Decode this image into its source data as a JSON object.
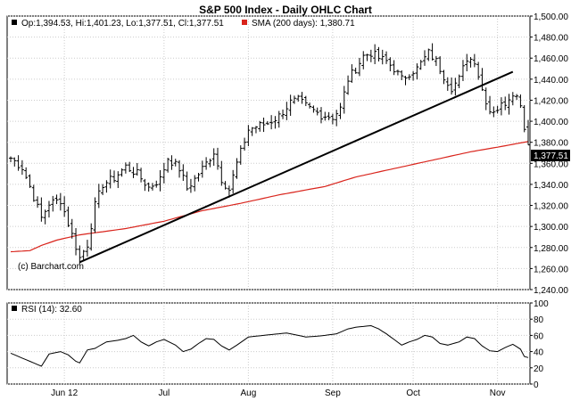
{
  "chart_data": {
    "type": "ohlc",
    "title": "S&P 500 Index - Daily OHLC Chart",
    "watermark": "(c) Barchart.com",
    "legend": {
      "ohlc": "Op:1,394.53, Hi:1,401.23, Lo:1,377.51, Cl:1,377.51",
      "sma": "SMA (200 days): 1,380.71",
      "rsi": "RSI (14): 32.60"
    },
    "last_price_label": "1,377.51",
    "last_price": 1377.51,
    "price_axis": {
      "ylim": [
        1240,
        1500
      ],
      "ticks": [
        1240,
        1260,
        1280,
        1300,
        1320,
        1340,
        1360,
        1380,
        1400,
        1420,
        1440,
        1460,
        1480,
        1500
      ],
      "tick_labels": [
        "1,240.00",
        "1,260.00",
        "1,280.00",
        "1,300.00",
        "1,320.00",
        "1,340.00",
        "1,360.00",
        "1,380.00",
        "1,400.00",
        "1,420.00",
        "1,440.00",
        "1,460.00",
        "1,480.00",
        "1,500.00"
      ]
    },
    "rsi_axis": {
      "ylim": [
        0,
        100
      ],
      "ticks": [
        0,
        20,
        40,
        60,
        80,
        100
      ],
      "tick_labels": [
        "0",
        "20",
        "40",
        "60",
        "80",
        "100"
      ]
    },
    "x_axis": {
      "labels": [
        "Jun 12",
        "Jul",
        "Aug",
        "Sep",
        "Oct",
        "Nov"
      ],
      "label_bar_index": [
        14,
        40,
        62,
        84,
        105,
        127
      ]
    },
    "trendline": {
      "from": {
        "bar": 18,
        "value": 1266
      },
      "to": {
        "bar": 131,
        "value": 1447
      }
    },
    "colors": {
      "ohlc": "#000000",
      "sma": "#d9241c",
      "rsi": "#000000",
      "trendline": "#000000",
      "grid": "#cccccc"
    },
    "bar_count": 136,
    "ohlc_anchors": [
      [
        0,
        1365
      ],
      [
        3,
        1356
      ],
      [
        5,
        1338
      ],
      [
        8,
        1308
      ],
      [
        10,
        1322
      ],
      [
        13,
        1325
      ],
      [
        16,
        1292
      ],
      [
        18,
        1270
      ],
      [
        20,
        1283
      ],
      [
        22,
        1320
      ],
      [
        24,
        1340
      ],
      [
        27,
        1346
      ],
      [
        30,
        1357
      ],
      [
        33,
        1350
      ],
      [
        36,
        1337
      ],
      [
        39,
        1345
      ],
      [
        41,
        1365
      ],
      [
        44,
        1355
      ],
      [
        46,
        1336
      ],
      [
        48,
        1345
      ],
      [
        51,
        1360
      ],
      [
        53,
        1371
      ],
      [
        55,
        1345
      ],
      [
        57,
        1335
      ],
      [
        59,
        1360
      ],
      [
        62,
        1392
      ],
      [
        64,
        1395
      ],
      [
        67,
        1398
      ],
      [
        70,
        1405
      ],
      [
        73,
        1418
      ],
      [
        75,
        1420
      ],
      [
        78,
        1412
      ],
      [
        81,
        1406
      ],
      [
        84,
        1404
      ],
      [
        86,
        1412
      ],
      [
        88,
        1440
      ],
      [
        90,
        1450
      ],
      [
        92,
        1462
      ],
      [
        94,
        1465
      ],
      [
        96,
        1460
      ],
      [
        98,
        1457
      ],
      [
        100,
        1450
      ],
      [
        102,
        1440
      ],
      [
        104,
        1446
      ],
      [
        106,
        1450
      ],
      [
        109,
        1465
      ],
      [
        111,
        1457
      ],
      [
        113,
        1443
      ],
      [
        115,
        1432
      ],
      [
        117,
        1440
      ],
      [
        119,
        1460
      ],
      [
        121,
        1458
      ],
      [
        123,
        1430
      ],
      [
        125,
        1410
      ],
      [
        127,
        1412
      ],
      [
        129,
        1418
      ],
      [
        131,
        1428
      ],
      [
        133,
        1418
      ],
      [
        134,
        1393
      ],
      [
        135,
        1380
      ]
    ],
    "sma_anchors": [
      [
        0,
        1276
      ],
      [
        5,
        1277
      ],
      [
        8,
        1282
      ],
      [
        12,
        1287
      ],
      [
        18,
        1292
      ],
      [
        30,
        1298
      ],
      [
        40,
        1305
      ],
      [
        50,
        1315
      ],
      [
        60,
        1322
      ],
      [
        70,
        1330
      ],
      [
        82,
        1338
      ],
      [
        90,
        1347
      ],
      [
        100,
        1355
      ],
      [
        110,
        1363
      ],
      [
        120,
        1371
      ],
      [
        128,
        1376
      ],
      [
        135,
        1380.71
      ]
    ],
    "rsi_anchors": [
      [
        0,
        38
      ],
      [
        3,
        32
      ],
      [
        5,
        28
      ],
      [
        8,
        22
      ],
      [
        10,
        37
      ],
      [
        13,
        40
      ],
      [
        15,
        36
      ],
      [
        17,
        28
      ],
      [
        18,
        26
      ],
      [
        20,
        42
      ],
      [
        22,
        44
      ],
      [
        25,
        52
      ],
      [
        28,
        54
      ],
      [
        30,
        56
      ],
      [
        32,
        60
      ],
      [
        34,
        52
      ],
      [
        36,
        47
      ],
      [
        38,
        52
      ],
      [
        40,
        55
      ],
      [
        43,
        48
      ],
      [
        45,
        40
      ],
      [
        47,
        43
      ],
      [
        49,
        50
      ],
      [
        51,
        56
      ],
      [
        53,
        55
      ],
      [
        55,
        47
      ],
      [
        57,
        42
      ],
      [
        59,
        48
      ],
      [
        62,
        58
      ],
      [
        66,
        60
      ],
      [
        70,
        62
      ],
      [
        72,
        63
      ],
      [
        75,
        60
      ],
      [
        77,
        58
      ],
      [
        80,
        59
      ],
      [
        82,
        60
      ],
      [
        85,
        62
      ],
      [
        88,
        68
      ],
      [
        90,
        70
      ],
      [
        92,
        71
      ],
      [
        94,
        72
      ],
      [
        96,
        68
      ],
      [
        98,
        62
      ],
      [
        100,
        55
      ],
      [
        102,
        48
      ],
      [
        104,
        52
      ],
      [
        106,
        55
      ],
      [
        108,
        60
      ],
      [
        110,
        58
      ],
      [
        112,
        50
      ],
      [
        114,
        48
      ],
      [
        117,
        52
      ],
      [
        119,
        58
      ],
      [
        121,
        56
      ],
      [
        123,
        47
      ],
      [
        125,
        41
      ],
      [
        127,
        40
      ],
      [
        129,
        45
      ],
      [
        131,
        49
      ],
      [
        133,
        43
      ],
      [
        134,
        34
      ],
      [
        135,
        32.6
      ]
    ]
  }
}
